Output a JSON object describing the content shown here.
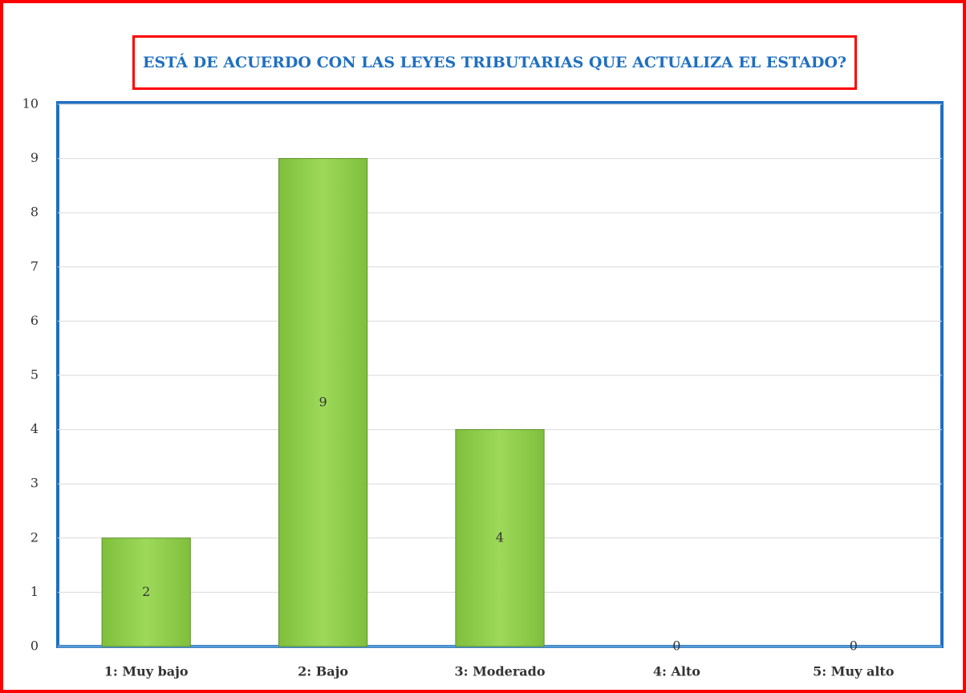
{
  "chart_data": {
    "type": "bar",
    "title": "ESTÁ DE ACUERDO CON LAS LEYES TRIBUTARIAS QUE ACTUALIZA EL ESTADO?",
    "categories": [
      "1: Muy bajo",
      "2: Bajo",
      "3: Moderado",
      "4: Alto",
      "5: Muy alto"
    ],
    "values": [
      2,
      9,
      4,
      0,
      0
    ],
    "color": "#92d050",
    "ylim": [
      0,
      10
    ],
    "yticks": [
      0,
      1,
      2,
      3,
      4,
      5,
      6,
      7,
      8,
      9,
      10
    ],
    "grid": true
  }
}
